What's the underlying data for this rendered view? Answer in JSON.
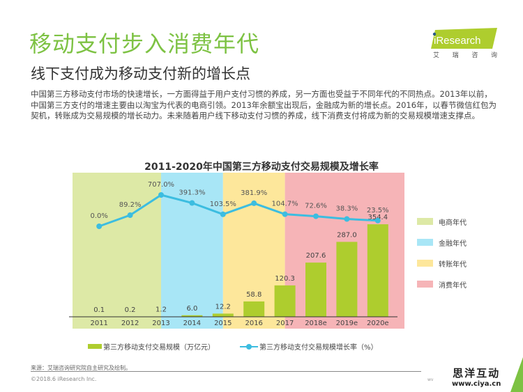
{
  "header": {
    "title": "移动支付步入消费年代",
    "subtitle": "线下支付成为移动支付新的增长点",
    "description": "中国第三方移动支付市场的快速增长，一方面得益于用户支付习惯的养成，另一方面也受益于不同年代的不同热点。2013年以前，中国第三方支付的增速主要由以淘宝为代表的电商引领。2013年余额宝出现后，金融成为新的增长点。2016年，以春节微信红包为契机，转账成为交易规模的增长动力。未来随着用户线下移动支付习惯的养成，线下消费支付将成为新的交易规模增速支撑点。"
  },
  "logo": {
    "brand": "iResearch",
    "chars": [
      "艾",
      "瑞",
      "咨",
      "询"
    ]
  },
  "colors": {
    "title_green": "#7dc243",
    "bar": "#aecd2e",
    "line": "#3cbde0",
    "band_ecommerce": "#dde9a6",
    "band_finance": "#a8e6f6",
    "band_transfer": "#fde79b",
    "band_consumption": "#f6b4b7"
  },
  "chart_data": {
    "type": "bar",
    "title": "2011-2020年中国第三方移动支付交易规模及增长率",
    "categories": [
      "2011",
      "2012",
      "2013",
      "2014",
      "2015",
      "2016",
      "2017",
      "2018e",
      "2019e",
      "2020e"
    ],
    "series": [
      {
        "name": "第三方移动支付交易规模（万亿元）",
        "type": "bar",
        "values": [
          0.1,
          0.2,
          1.2,
          6.0,
          12.2,
          58.8,
          120.3,
          207.6,
          287.0,
          354.4
        ],
        "labels": [
          "0.1",
          "0.2",
          "1.2",
          "6.0",
          "12.2",
          "58.8",
          "120.3",
          "207.6",
          "287.0",
          "354.4"
        ]
      },
      {
        "name": "第三方移动支付交易规模增长率（%）",
        "type": "line",
        "values": [
          0.0,
          89.2,
          707.0,
          391.3,
          103.5,
          381.9,
          104.7,
          72.6,
          38.3,
          23.5
        ],
        "labels": [
          "0.0%",
          "89.2%",
          "707.0%",
          "391.3%",
          "103.5%",
          "381.9%",
          "104.7%",
          "72.6%",
          "38.3%",
          "23.5%"
        ]
      }
    ],
    "bands": [
      {
        "name": "电商年代",
        "from": "2011",
        "to": "2013",
        "colorKey": "band_ecommerce"
      },
      {
        "name": "金融年代",
        "from": "2013",
        "to": "2015",
        "colorKey": "band_finance"
      },
      {
        "name": "转账年代",
        "from": "2015",
        "to": "2017",
        "colorKey": "band_transfer"
      },
      {
        "name": "消费年代",
        "from": "2017",
        "to": "2020e",
        "colorKey": "band_consumption"
      }
    ],
    "legend_position": "bottom",
    "band_legend_position": "right",
    "grid": false
  },
  "footer": {
    "source": "来源：艾瑞咨询研究院自主研究及绘制。",
    "copyright": "©2018.6 iResearch Inc.",
    "page_url_fragment": "wv",
    "watermark_cn": "思洋互动",
    "watermark_url": "www.ciya.cn"
  }
}
